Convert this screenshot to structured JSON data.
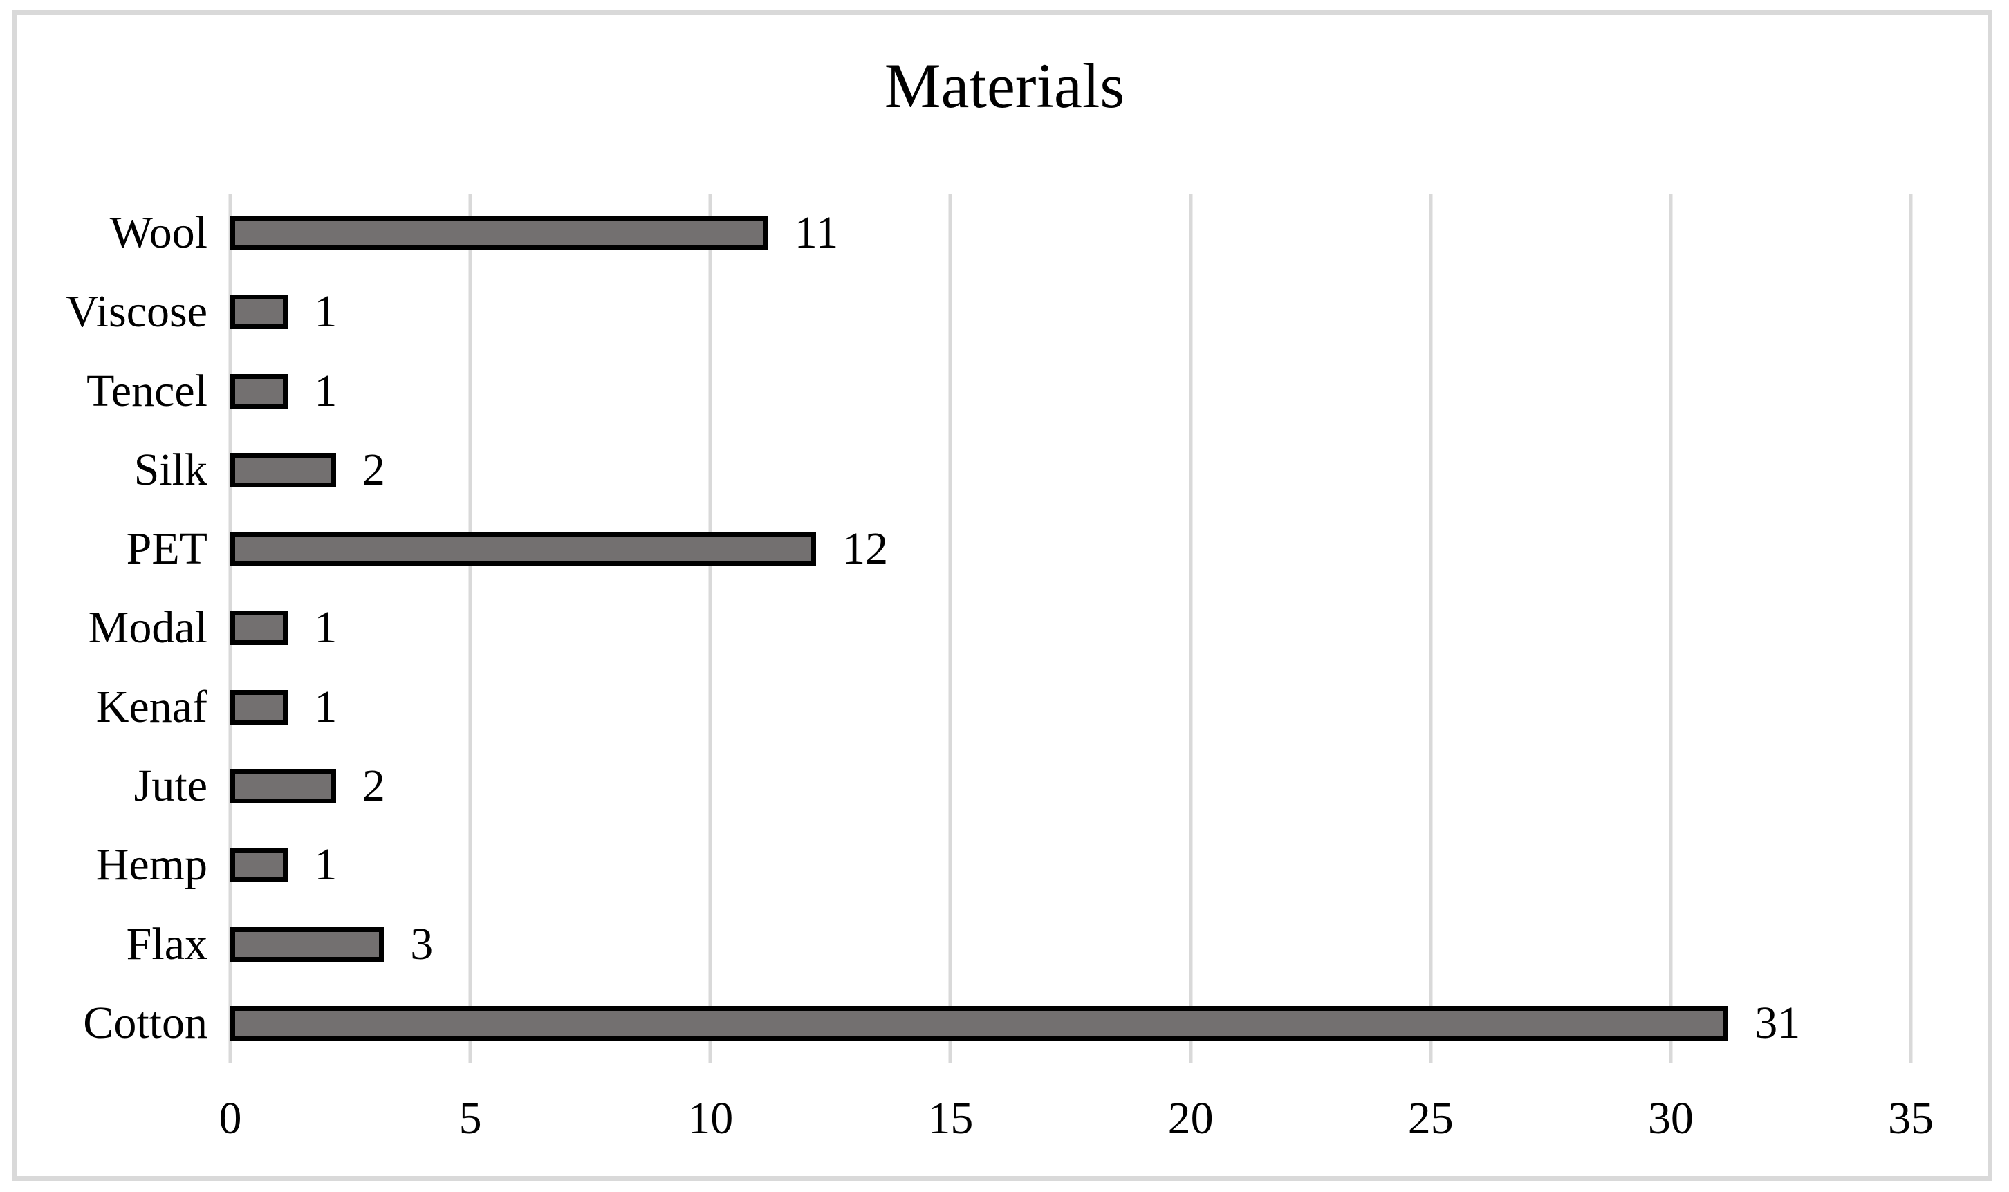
{
  "chart_data": {
    "type": "bar",
    "orientation": "horizontal",
    "title": "Materials",
    "categories_top_to_bottom": [
      "Wool",
      "Viscose",
      "Tencel",
      "Silk",
      "PET",
      "Modal",
      "Kenaf",
      "Jute",
      "Hemp",
      "Flax",
      "Cotton"
    ],
    "values": [
      11,
      1,
      1,
      2,
      12,
      1,
      1,
      2,
      1,
      3,
      31
    ],
    "data_labels_shown": true,
    "xlabel": "",
    "ylabel": "",
    "xlim": [
      0,
      35
    ],
    "xticks": [
      0,
      5,
      10,
      15,
      20,
      25,
      30,
      35
    ],
    "grid": "vertical-only",
    "legend": "none",
    "colors": {
      "bar_fill": "#737070",
      "bar_border": "#000000",
      "gridline": "#d9d9d9",
      "frame_border": "#d9d9d9",
      "text": "#000000",
      "background": "#ffffff"
    }
  }
}
